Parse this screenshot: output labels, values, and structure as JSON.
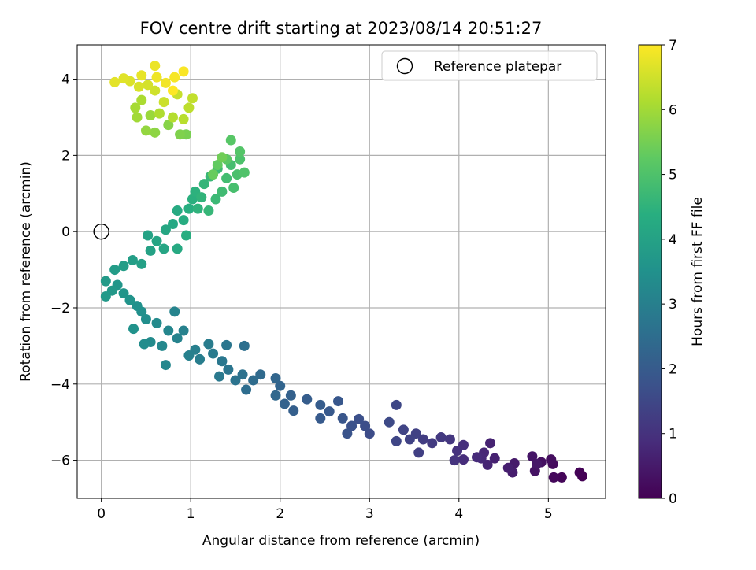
{
  "chart_data": {
    "type": "scatter",
    "title": "FOV centre drift starting at 2023/08/14 20:51:27",
    "xlabel": "Angular distance from reference (arcmin)",
    "ylabel": "Rotation from reference (arcmin)",
    "xlim": [
      -0.27,
      5.64
    ],
    "ylim": [
      -7.0,
      4.9
    ],
    "xticks": [
      "0",
      "1",
      "2",
      "3",
      "4",
      "5"
    ],
    "yticks": [
      "−6",
      "−4",
      "−2",
      "0",
      "2",
      "4"
    ],
    "grid": true,
    "legend": {
      "position": "top-right",
      "entries": [
        "Reference platepar"
      ]
    },
    "reference_point": {
      "x": 0,
      "y": 0
    },
    "colorbar": {
      "label": "Hours from first FF file",
      "range": [
        0,
        7
      ],
      "ticks": [
        "0",
        "1",
        "2",
        "3",
        "4",
        "5",
        "6",
        "7"
      ],
      "colormap": "viridis"
    },
    "series": [
      {
        "points": [
          {
            "x": 5.38,
            "y": -6.42,
            "t": 0.0
          },
          {
            "x": 5.35,
            "y": -6.32,
            "t": 0.04
          },
          {
            "x": 5.15,
            "y": -6.45,
            "t": 0.1
          },
          {
            "x": 5.06,
            "y": -6.45,
            "t": 0.14
          },
          {
            "x": 5.05,
            "y": -6.1,
            "t": 0.2
          },
          {
            "x": 5.03,
            "y": -5.98,
            "t": 0.25
          },
          {
            "x": 4.92,
            "y": -6.05,
            "t": 0.3
          },
          {
            "x": 4.85,
            "y": -6.28,
            "t": 0.35
          },
          {
            "x": 4.82,
            "y": -5.9,
            "t": 0.4
          },
          {
            "x": 4.87,
            "y": -6.1,
            "t": 0.45
          },
          {
            "x": 4.62,
            "y": -6.08,
            "t": 0.5
          },
          {
            "x": 4.6,
            "y": -6.32,
            "t": 0.55
          },
          {
            "x": 4.55,
            "y": -6.2,
            "t": 0.6
          },
          {
            "x": 4.4,
            "y": -5.95,
            "t": 0.64
          },
          {
            "x": 4.35,
            "y": -5.55,
            "t": 0.68
          },
          {
            "x": 4.32,
            "y": -6.12,
            "t": 0.72
          },
          {
            "x": 4.28,
            "y": -5.8,
            "t": 0.76
          },
          {
            "x": 4.25,
            "y": -5.95,
            "t": 0.8
          },
          {
            "x": 4.2,
            "y": -5.92,
            "t": 0.85
          },
          {
            "x": 4.05,
            "y": -5.98,
            "t": 0.9
          },
          {
            "x": 4.05,
            "y": -5.6,
            "t": 0.95
          },
          {
            "x": 3.98,
            "y": -5.75,
            "t": 1.0
          },
          {
            "x": 3.95,
            "y": -6.0,
            "t": 1.05
          },
          {
            "x": 3.9,
            "y": -5.45,
            "t": 1.1
          },
          {
            "x": 3.8,
            "y": -5.4,
            "t": 1.15
          },
          {
            "x": 3.7,
            "y": -5.55,
            "t": 1.2
          },
          {
            "x": 3.6,
            "y": -5.45,
            "t": 1.25
          },
          {
            "x": 3.55,
            "y": -5.8,
            "t": 1.3
          },
          {
            "x": 3.52,
            "y": -5.3,
            "t": 1.34
          },
          {
            "x": 3.45,
            "y": -5.45,
            "t": 1.38
          },
          {
            "x": 3.38,
            "y": -5.2,
            "t": 1.42
          },
          {
            "x": 3.3,
            "y": -5.5,
            "t": 1.46
          },
          {
            "x": 3.3,
            "y": -4.55,
            "t": 1.5
          },
          {
            "x": 3.22,
            "y": -5.0,
            "t": 1.55
          },
          {
            "x": 3.0,
            "y": -5.3,
            "t": 1.6
          },
          {
            "x": 2.95,
            "y": -5.1,
            "t": 1.65
          },
          {
            "x": 2.88,
            "y": -4.92,
            "t": 1.7
          },
          {
            "x": 2.8,
            "y": -5.1,
            "t": 1.75
          },
          {
            "x": 2.75,
            "y": -5.3,
            "t": 1.8
          },
          {
            "x": 2.7,
            "y": -4.9,
            "t": 1.85
          },
          {
            "x": 2.65,
            "y": -4.45,
            "t": 1.9
          },
          {
            "x": 2.55,
            "y": -4.72,
            "t": 1.94
          },
          {
            "x": 2.45,
            "y": -4.9,
            "t": 1.98
          },
          {
            "x": 2.45,
            "y": -4.55,
            "t": 2.02
          },
          {
            "x": 2.3,
            "y": -4.4,
            "t": 2.06
          },
          {
            "x": 2.15,
            "y": -4.7,
            "t": 2.1
          },
          {
            "x": 2.12,
            "y": -4.3,
            "t": 2.15
          },
          {
            "x": 2.05,
            "y": -4.52,
            "t": 2.2
          },
          {
            "x": 2.0,
            "y": -4.05,
            "t": 2.25
          },
          {
            "x": 1.95,
            "y": -3.85,
            "t": 2.3
          },
          {
            "x": 1.95,
            "y": -4.3,
            "t": 2.35
          },
          {
            "x": 1.78,
            "y": -3.75,
            "t": 2.4
          },
          {
            "x": 1.7,
            "y": -3.9,
            "t": 2.45
          },
          {
            "x": 1.62,
            "y": -4.15,
            "t": 2.5
          },
          {
            "x": 1.6,
            "y": -3.0,
            "t": 2.55
          },
          {
            "x": 1.58,
            "y": -3.75,
            "t": 2.6
          },
          {
            "x": 1.5,
            "y": -3.9,
            "t": 2.65
          },
          {
            "x": 1.42,
            "y": -3.62,
            "t": 2.7
          },
          {
            "x": 1.4,
            "y": -2.98,
            "t": 2.74
          },
          {
            "x": 1.35,
            "y": -3.4,
            "t": 2.78
          },
          {
            "x": 1.32,
            "y": -3.8,
            "t": 2.82
          },
          {
            "x": 1.25,
            "y": -3.2,
            "t": 2.86
          },
          {
            "x": 1.2,
            "y": -2.95,
            "t": 2.9
          },
          {
            "x": 1.1,
            "y": -3.35,
            "t": 2.94
          },
          {
            "x": 1.05,
            "y": -3.1,
            "t": 2.98
          },
          {
            "x": 0.98,
            "y": -3.25,
            "t": 3.02
          },
          {
            "x": 0.92,
            "y": -2.6,
            "t": 3.06
          },
          {
            "x": 0.85,
            "y": -2.8,
            "t": 3.1
          },
          {
            "x": 0.82,
            "y": -2.1,
            "t": 3.14
          },
          {
            "x": 0.75,
            "y": -2.6,
            "t": 3.18
          },
          {
            "x": 0.72,
            "y": -3.5,
            "t": 3.22
          },
          {
            "x": 0.68,
            "y": -3.0,
            "t": 3.26
          },
          {
            "x": 0.62,
            "y": -2.4,
            "t": 3.3
          },
          {
            "x": 0.55,
            "y": -2.9,
            "t": 3.34
          },
          {
            "x": 0.48,
            "y": -2.95,
            "t": 3.38
          },
          {
            "x": 0.5,
            "y": -2.3,
            "t": 3.42
          },
          {
            "x": 0.45,
            "y": -2.1,
            "t": 3.46
          },
          {
            "x": 0.4,
            "y": -1.95,
            "t": 3.5
          },
          {
            "x": 0.36,
            "y": -2.55,
            "t": 3.54
          },
          {
            "x": 0.32,
            "y": -1.8,
            "t": 3.58
          },
          {
            "x": 0.25,
            "y": -1.62,
            "t": 3.62
          },
          {
            "x": 0.18,
            "y": -1.4,
            "t": 3.66
          },
          {
            "x": 0.12,
            "y": -1.55,
            "t": 3.7
          },
          {
            "x": 0.05,
            "y": -1.7,
            "t": 3.74
          },
          {
            "x": 0.05,
            "y": -1.3,
            "t": 3.78
          },
          {
            "x": 0.15,
            "y": -1.0,
            "t": 3.82
          },
          {
            "x": 0.25,
            "y": -0.9,
            "t": 3.86
          },
          {
            "x": 0.35,
            "y": -0.75,
            "t": 3.9
          },
          {
            "x": 0.45,
            "y": -0.85,
            "t": 3.94
          },
          {
            "x": 0.55,
            "y": -0.5,
            "t": 3.98
          },
          {
            "x": 0.52,
            "y": -0.1,
            "t": 4.02
          },
          {
            "x": 0.62,
            "y": -0.25,
            "t": 4.06
          },
          {
            "x": 0.7,
            "y": -0.45,
            "t": 4.1
          },
          {
            "x": 0.72,
            "y": 0.05,
            "t": 4.14
          },
          {
            "x": 0.8,
            "y": 0.2,
            "t": 4.18
          },
          {
            "x": 0.85,
            "y": -0.45,
            "t": 4.22
          },
          {
            "x": 0.85,
            "y": 0.55,
            "t": 4.26
          },
          {
            "x": 0.92,
            "y": 0.3,
            "t": 4.3
          },
          {
            "x": 0.95,
            "y": -0.1,
            "t": 4.34
          },
          {
            "x": 0.98,
            "y": 0.6,
            "t": 4.38
          },
          {
            "x": 1.02,
            "y": 0.85,
            "t": 4.42
          },
          {
            "x": 1.05,
            "y": 1.05,
            "t": 4.46
          },
          {
            "x": 1.08,
            "y": 0.6,
            "t": 4.5
          },
          {
            "x": 1.12,
            "y": 0.9,
            "t": 4.54
          },
          {
            "x": 1.15,
            "y": 1.25,
            "t": 4.58
          },
          {
            "x": 1.2,
            "y": 0.55,
            "t": 4.62
          },
          {
            "x": 1.22,
            "y": 1.45,
            "t": 4.66
          },
          {
            "x": 1.28,
            "y": 0.85,
            "t": 4.7
          },
          {
            "x": 1.3,
            "y": 1.65,
            "t": 4.74
          },
          {
            "x": 1.35,
            "y": 1.05,
            "t": 4.78
          },
          {
            "x": 1.4,
            "y": 1.4,
            "t": 4.82
          },
          {
            "x": 1.45,
            "y": 1.75,
            "t": 4.86
          },
          {
            "x": 1.48,
            "y": 1.15,
            "t": 4.9
          },
          {
            "x": 1.52,
            "y": 1.5,
            "t": 4.94
          },
          {
            "x": 1.55,
            "y": 1.9,
            "t": 4.98
          },
          {
            "x": 1.6,
            "y": 1.55,
            "t": 5.02
          },
          {
            "x": 1.55,
            "y": 2.1,
            "t": 5.08
          },
          {
            "x": 1.45,
            "y": 2.4,
            "t": 5.14
          },
          {
            "x": 1.4,
            "y": 1.9,
            "t": 5.2
          },
          {
            "x": 1.3,
            "y": 1.75,
            "t": 5.28
          },
          {
            "x": 1.25,
            "y": 1.5,
            "t": 5.36
          },
          {
            "x": 1.35,
            "y": 1.95,
            "t": 5.45
          },
          {
            "x": 0.95,
            "y": 2.55,
            "t": 5.55
          },
          {
            "x": 0.88,
            "y": 2.55,
            "t": 5.62
          },
          {
            "x": 0.75,
            "y": 2.8,
            "t": 5.7
          },
          {
            "x": 0.6,
            "y": 2.6,
            "t": 5.78
          },
          {
            "x": 0.5,
            "y": 2.65,
            "t": 5.85
          },
          {
            "x": 0.55,
            "y": 3.05,
            "t": 5.92
          },
          {
            "x": 0.4,
            "y": 3.0,
            "t": 6.0
          },
          {
            "x": 0.38,
            "y": 3.25,
            "t": 6.05
          },
          {
            "x": 0.45,
            "y": 3.45,
            "t": 6.1
          },
          {
            "x": 0.65,
            "y": 3.1,
            "t": 6.15
          },
          {
            "x": 0.8,
            "y": 3.0,
            "t": 6.2
          },
          {
            "x": 0.92,
            "y": 2.95,
            "t": 6.25
          },
          {
            "x": 0.98,
            "y": 3.25,
            "t": 6.3
          },
          {
            "x": 1.02,
            "y": 3.5,
            "t": 6.35
          },
          {
            "x": 0.85,
            "y": 3.6,
            "t": 6.4
          },
          {
            "x": 0.7,
            "y": 3.4,
            "t": 6.45
          },
          {
            "x": 0.6,
            "y": 3.7,
            "t": 6.5
          },
          {
            "x": 0.52,
            "y": 3.85,
            "t": 6.55
          },
          {
            "x": 0.42,
            "y": 3.8,
            "t": 6.6
          },
          {
            "x": 0.32,
            "y": 3.95,
            "t": 6.64
          },
          {
            "x": 0.25,
            "y": 4.02,
            "t": 6.68
          },
          {
            "x": 0.15,
            "y": 3.92,
            "t": 6.72
          },
          {
            "x": 0.45,
            "y": 4.1,
            "t": 6.76
          },
          {
            "x": 0.6,
            "y": 4.35,
            "t": 6.8
          },
          {
            "x": 0.62,
            "y": 4.05,
            "t": 6.84
          },
          {
            "x": 0.72,
            "y": 3.9,
            "t": 6.88
          },
          {
            "x": 0.82,
            "y": 4.05,
            "t": 6.92
          },
          {
            "x": 0.92,
            "y": 4.2,
            "t": 6.96
          },
          {
            "x": 0.8,
            "y": 3.7,
            "t": 7.0
          }
        ]
      }
    ]
  }
}
